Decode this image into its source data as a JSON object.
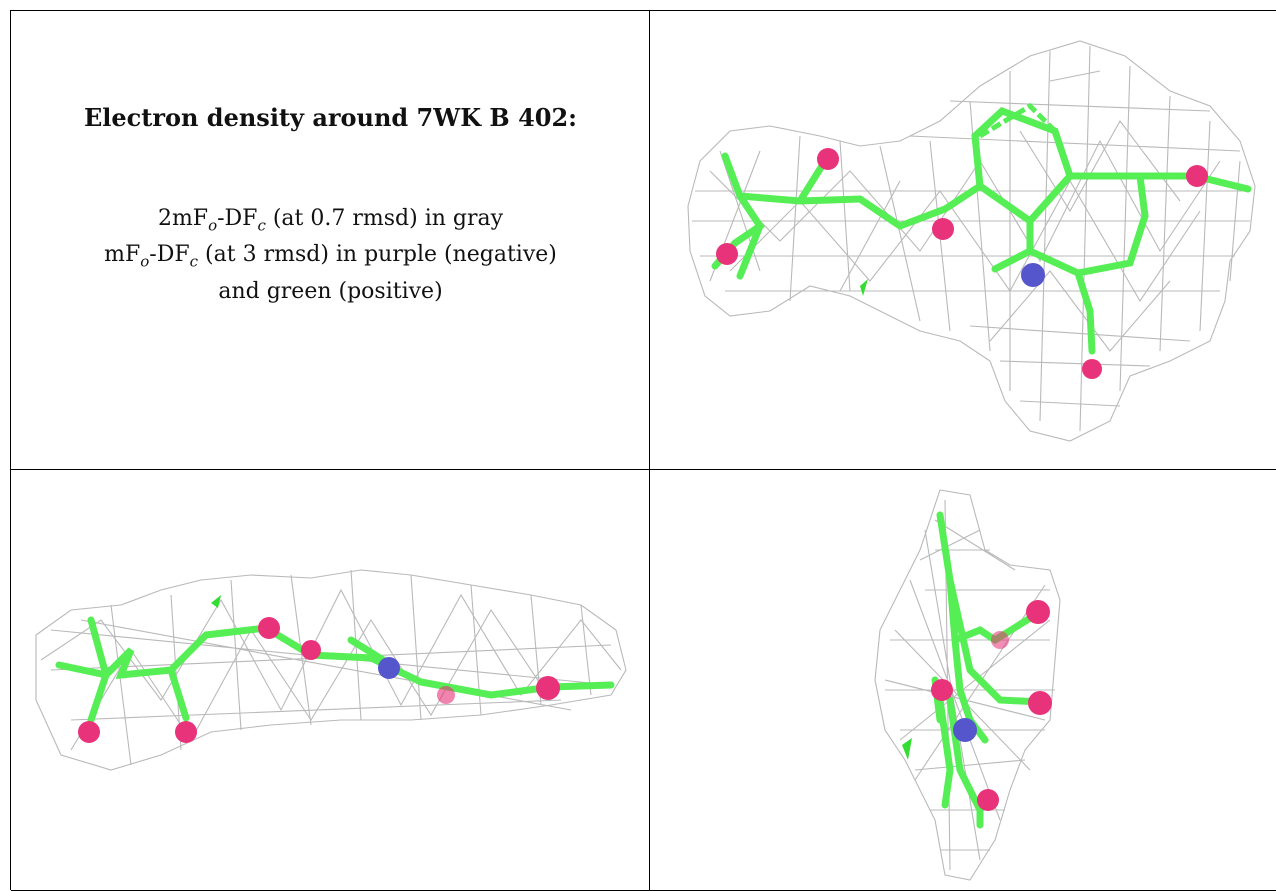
{
  "panel_text": {
    "title": "Electron density around 7WK B 402:",
    "line1_a": "2mF",
    "line1_sub1": "o",
    "line1_b": "-DF",
    "line1_sub2": "c",
    "line1_c": " (at 0.7 rmsd) in gray",
    "line2_a": "mF",
    "line2_sub1": "o",
    "line2_b": "-DF",
    "line2_sub2": "c",
    "line2_c": " (at 3 rmsd) in purple (negative)",
    "line3": "and green (positive)"
  },
  "colors": {
    "mesh": "#b9b9b9",
    "carbon": "#55ee55",
    "oxygen": "#e8327a",
    "nitrogen": "#5555cc",
    "positive_density": "#33dd33"
  }
}
